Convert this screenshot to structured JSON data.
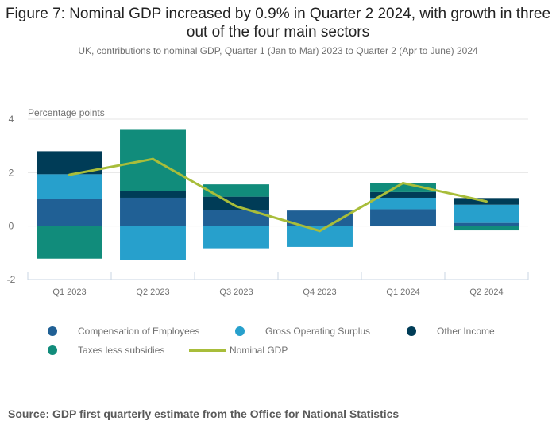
{
  "title": "Figure 7: Nominal GDP increased by 0.9% in Quarter 2 2024, with growth in three out of the four main sectors",
  "subtitle": "UK, contributions to nominal GDP, Quarter 1 (Jan to Mar) 2023 to Quarter 2 (Apr to June) 2024",
  "source": "Source: GDP first quarterly estimate from the Office for National Statistics",
  "chart_data": {
    "type": "bar",
    "stacked": true,
    "title": "Figure 7: Nominal GDP increased by 0.9% in Quarter 2 2024, with growth in three out of the four main sectors",
    "subtitle": "UK, contributions to nominal GDP, Quarter 1 (Jan to Mar) 2023 to Quarter 2 (Apr to June) 2024",
    "xlabel": "",
    "ylabel": "Percentage points",
    "ylim": [
      -2,
      4
    ],
    "yticks": [
      "4",
      "2",
      "0",
      "-2"
    ],
    "ytick_values": [
      4,
      2,
      0,
      -2
    ],
    "grid": true,
    "legend_position": "bottom",
    "categories": [
      "Q1 2023",
      "Q2 2023",
      "Q3 2023",
      "Q4 2023",
      "Q1 2024",
      "Q2 2024"
    ],
    "series": [
      {
        "name": "Compensation of Employees",
        "kind": "bar",
        "color": "#206095",
        "values": [
          1.03,
          1.06,
          0.59,
          0.58,
          0.63,
          0.12
        ]
      },
      {
        "name": "Gross Operating Surplus",
        "kind": "bar",
        "color": "#27a0cc",
        "values": [
          0.91,
          -1.28,
          -0.83,
          -0.78,
          0.43,
          0.68
        ]
      },
      {
        "name": "Other Income",
        "kind": "bar",
        "color": "#003c57",
        "values": [
          0.86,
          0.26,
          0.51,
          0.0,
          0.21,
          0.25
        ]
      },
      {
        "name": "Taxes less subsidies",
        "kind": "bar",
        "color": "#118c7b",
        "values": [
          -1.22,
          2.28,
          0.46,
          0.0,
          0.35,
          -0.16
        ]
      },
      {
        "name": "Nominal GDP",
        "kind": "line",
        "color": "#a8bd3a",
        "values": [
          1.92,
          2.51,
          0.74,
          -0.18,
          1.61,
          0.92
        ]
      }
    ]
  },
  "legend": [
    {
      "label": "Compensation of Employees",
      "color": "#206095",
      "marker": "dot"
    },
    {
      "label": "Gross Operating Surplus",
      "color": "#27a0cc",
      "marker": "dot"
    },
    {
      "label": "Other Income",
      "color": "#003c57",
      "marker": "dot"
    },
    {
      "label": "Taxes less subsidies",
      "color": "#118c7b",
      "marker": "dot"
    },
    {
      "label": "Nominal GDP",
      "color": "#a8bd3a",
      "marker": "line"
    }
  ]
}
